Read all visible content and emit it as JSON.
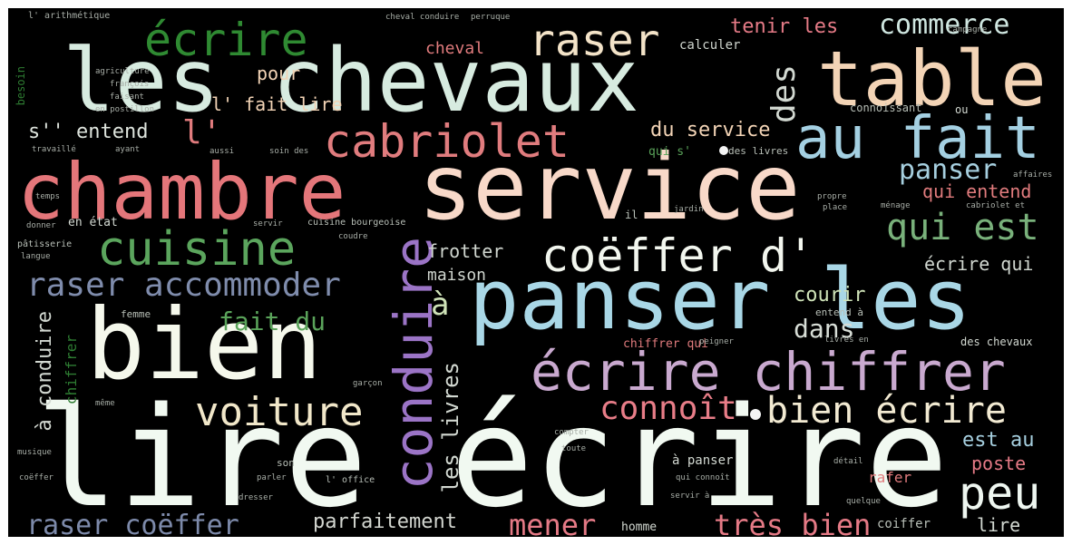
{
  "palette": {
    "white": "#f4fbf4",
    "mint": "#dcefe3",
    "sky": "#a9d6e5",
    "salmon": "#f2b8a5",
    "rose": "#e57a7a",
    "deep_rose": "#d9707a",
    "green": "#5aa35a",
    "dark_green": "#2e7d32",
    "lavender": "#b9a3c9",
    "violet": "#9a72c4",
    "slate": "#7d8aa8",
    "cream": "#f1e6c8",
    "peach": "#f6d2b0"
  },
  "words": {
    "lire_ecrire": "lire écrire",
    "bien": "bien",
    "service": "service",
    "chambre": "chambre",
    "les_chevaux": "les chevaux",
    "table": "table",
    "panser_les": "panser les",
    "ecrire_chiffrer": "écrire chiffrer",
    "cabriolet": "cabriolet",
    "au_fait": "au fait",
    "cuisine": "cuisine",
    "conduire": "conduire",
    "coeffer_d": "coëffer d'",
    "ecrire_top": "écrire",
    "raser_top": "raser",
    "commerce": "commerce",
    "qui_est": "qui est",
    "panser": "panser",
    "qui_entend": "qui entend",
    "raser_accommoder": "raser accommoder",
    "connoit": "connoît",
    "bien_ecrire": "bien écrire",
    "voiture": "voiture",
    "peu": "peu",
    "raser_coeffer": "raser coëffer",
    "parfaitement": "parfaitement",
    "mener": "mener",
    "tres_bien": "très bien",
    "poste": "poste",
    "est_au": "est au",
    "fait_du": "fait du",
    "dans": "dans",
    "courir": "courir",
    "maison": "maison",
    "frotter": "frotter",
    "ecrire_qui": "écrire qui",
    "tenir_les": "tenir les",
    "cheval": "cheval",
    "calculer": "calculer",
    "pour": "pour",
    "des": "des",
    "l_fait_lire": "l' fait lire",
    "s_entend": "s'' entend",
    "du_service": "du service",
    "l": "l'",
    "a": "à",
    "les_livres": "les livres",
    "a_conduire": "à conduire",
    "chiffrer": "chiffrer",
    "lire_small": "lire",
    "coiffer": "coiffer",
    "rafer": "rafer",
    "a_panser": "à panser",
    "homme": "homme",
    "des_chevaux": "des chevaux",
    "chiffrer_qui": "chiffrer qui",
    "en_etat": "en état",
    "cuisine_bourgeoise": "cuisine bourgeoise",
    "connoissant": "connoissant",
    "besoin": "besoin",
    "qui_s": "qui s'",
    "des_livres": "des livres",
    "l_arithmetique": "l' arithmétique",
    "cheval_conduire": "cheval conduire",
    "perruque": "perruque",
    "ou": "ou",
    "affaires": "affaires",
    "le_lettre": "écrire",
    "il": "il",
    "jardin": "jardin",
    "place": "place",
    "propre": "propre",
    "menage": "ménage",
    "cabriolet_small": "cabriolet et",
    "entend_a": "entend à",
    "femme": "femme",
    "patisserie": "pâtisserie",
    "langue": "langue",
    "fait": "fait",
    "pour_small": "pour",
    "garcon": "garçon",
    "musique": "musique",
    "coeffer_small": "coëffer",
    "parler": "parler",
    "son": "son",
    "dresser": "dresser",
    "l_office": "l' office",
    "servir_a": "servir à",
    "detail": "détail",
    "quelque": "quelque",
    "qui_connoit": "qui connoît",
    "en_postillon": "en postillon",
    "faisant": "faisant",
    "francais": "françois",
    "travaille": "travaillé",
    "ayant": "ayant",
    "aussi": "aussi",
    "soin_des": "soin des",
    "temps": "temps",
    "donner": "donner",
    "servir": "servir",
    "coudre": "coudre",
    "ou_small": "ou",
    "compter": "compter",
    "toute": "toute",
    "meme": "même",
    "peigner": "peigner",
    "livres_en": "livres en",
    "agriculture": "agriculture",
    "campagne": "campagne"
  }
}
